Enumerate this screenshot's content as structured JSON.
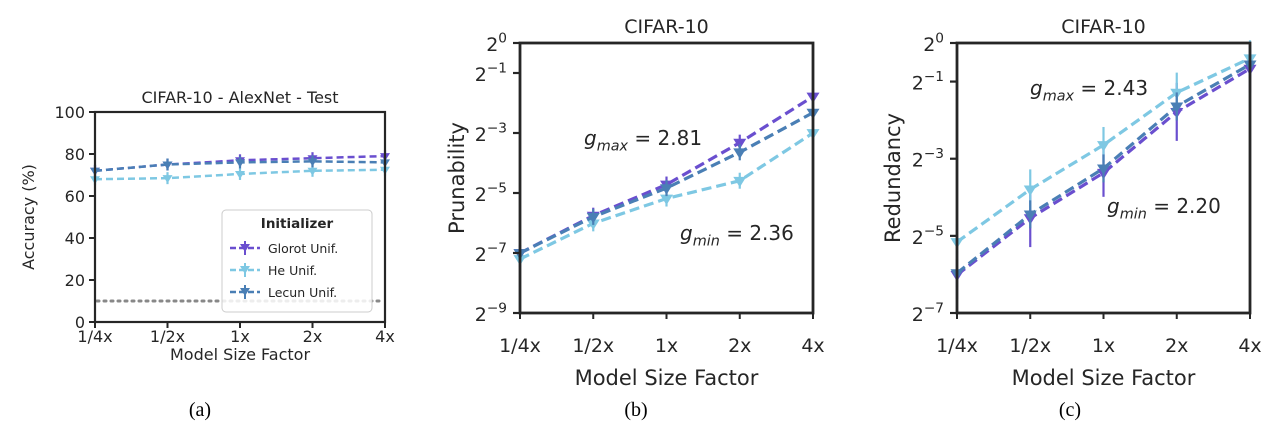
{
  "chart_data": [
    {
      "type": "line",
      "title": "CIFAR-10 - AlexNet - Test",
      "xlabel": "Model Size Factor",
      "ylabel": "Accuracy (%)",
      "categories": [
        "1/4x",
        "1/2x",
        "1x",
        "2x",
        "4x"
      ],
      "yticks": [
        "0",
        "20",
        "40",
        "60",
        "80",
        "100"
      ],
      "ylim": [
        0,
        100
      ],
      "series": [
        {
          "name": "Glorot Unif.",
          "values": [
            72,
            75,
            77,
            78,
            79
          ],
          "color": "#6a4fcf"
        },
        {
          "name": "He Unif.",
          "values": [
            68,
            68.5,
            70.5,
            72,
            72.5
          ],
          "color": "#7ec8e3"
        },
        {
          "name": "Lecun Unif.",
          "values": [
            72,
            75,
            76,
            76.5,
            76
          ],
          "color": "#4a7fb5"
        }
      ],
      "reference_line": {
        "y": 10,
        "style": "dotted",
        "color": "#888888"
      },
      "legend": {
        "title": "Initializer",
        "placement": "lower-right"
      },
      "panel_label": "(a)"
    },
    {
      "type": "line",
      "title": "CIFAR-10",
      "xlabel": "Model Size Factor",
      "ylabel": "Prunability",
      "y_scale": "log2",
      "categories": [
        "1/4x",
        "1/2x",
        "1x",
        "2x",
        "4x"
      ],
      "yticks": [
        "2^0",
        "2^-1",
        "2^-3",
        "2^-5",
        "2^-7",
        "2^-9"
      ],
      "ylim": [
        "2^-9",
        "2^0"
      ],
      "series": [
        {
          "name": "Glorot Unif.",
          "values": [
            0.0078,
            0.0185,
            0.038,
            0.1,
            0.29
          ],
          "color": "#6a4fcf"
        },
        {
          "name": "He Unif.",
          "values": [
            0.0068,
            0.0155,
            0.0275,
            0.0415,
            0.125
          ],
          "color": "#7ec8e3"
        },
        {
          "name": "Lecun Unif.",
          "values": [
            0.0078,
            0.018,
            0.035,
            0.08,
            0.2
          ],
          "color": "#4a7fb5"
        }
      ],
      "annotations": [
        {
          "base": "g",
          "sub": "max",
          "text": " = 2.81"
        },
        {
          "base": "g",
          "sub": "min",
          "text": " = 2.36"
        }
      ],
      "panel_label": "(b)"
    },
    {
      "type": "line",
      "title": "CIFAR-10",
      "xlabel": "Model Size Factor",
      "ylabel": "Redundancy",
      "y_scale": "log2",
      "categories": [
        "1/4x",
        "1/2x",
        "1x",
        "2x",
        "4x"
      ],
      "yticks": [
        "2^0",
        "2^-1",
        "2^-3",
        "2^-5",
        "2^-7"
      ],
      "ylim": [
        "2^-7",
        "2^0"
      ],
      "series": [
        {
          "name": "Glorot Unif.",
          "values": [
            0.0155,
            0.043,
            0.097,
            0.29,
            0.63
          ],
          "color": "#6a4fcf"
        },
        {
          "name": "He Unif.",
          "values": [
            0.028,
            0.072,
            0.16,
            0.41,
            0.76
          ],
          "color": "#7ec8e3"
        },
        {
          "name": "Lecun Unif.",
          "values": [
            0.016,
            0.046,
            0.105,
            0.32,
            0.68
          ],
          "color": "#4a7fb5"
        }
      ],
      "annotations": [
        {
          "base": "g",
          "sub": "max",
          "text": " = 2.43"
        },
        {
          "base": "g",
          "sub": "min",
          "text": " = 2.20"
        }
      ],
      "panel_label": "(c)"
    }
  ]
}
